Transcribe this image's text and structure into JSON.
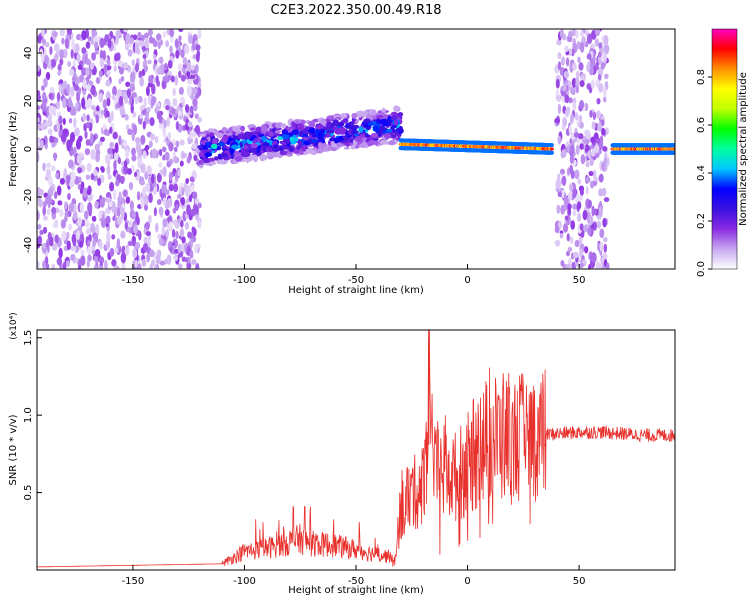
{
  "figure": {
    "title": "C2E3.2022.350.00.49.R18"
  },
  "chart_data": [
    {
      "type": "heatmap",
      "xlabel": "Height of straight line (km)",
      "ylabel": "Frequency (Hz)",
      "xlim": [
        -193,
        93
      ],
      "ylim": [
        -50,
        50
      ],
      "xticks": [
        -150,
        -100,
        -50,
        0,
        50
      ],
      "yticks": [
        -40,
        -20,
        0,
        20,
        40
      ],
      "colorbar": {
        "label": "Normalized spectral amplitude",
        "range": [
          0,
          1
        ],
        "ticks": [
          0.0,
          0.2,
          0.4,
          0.6,
          0.8
        ],
        "stops": [
          "#ffffff",
          "#c8a8f0",
          "#8a2be2",
          "#3a10e0",
          "#0000ff",
          "#00c8ff",
          "#00ffa0",
          "#00ff00",
          "#c0ff00",
          "#ffff00",
          "#ff9000",
          "#ff0000",
          "#ff00c0"
        ]
      },
      "description_regions": [
        {
          "x": [
            -193,
            -120
          ],
          "freq": [
            -50,
            50
          ],
          "amplitude": 0.1,
          "pattern": "broadband noise"
        },
        {
          "x": [
            -120,
            -30
          ],
          "freq_center": [
            0,
            10
          ],
          "amplitude": 0.35,
          "pattern": "signal band"
        },
        {
          "x": [
            -30,
            38
          ],
          "freq_center": [
            2,
            0
          ],
          "amplitude": 0.85,
          "pattern": "narrow strong tone"
        },
        {
          "x": [
            40,
            63
          ],
          "freq": [
            -50,
            50
          ],
          "amplitude": 0.1,
          "pattern": "broadband noise"
        },
        {
          "x": [
            65,
            93
          ],
          "freq_center": [
            0,
            0
          ],
          "amplitude": 0.85,
          "pattern": "narrow strong tone"
        }
      ],
      "grid": false
    },
    {
      "type": "line",
      "xlabel": "Height of straight line (km)",
      "ylabel": "SNR (10 * v/v)",
      "y_multiplier": "(x10⁴)",
      "xlim": [
        -193,
        93
      ],
      "ylim": [
        0,
        1.55
      ],
      "xticks": [
        -150,
        -100,
        -50,
        0,
        50
      ],
      "yticks": [
        0.5,
        1.0,
        1.5
      ],
      "color": "#e8302c",
      "envelope": {
        "x": [
          -193,
          -110,
          -100,
          -90,
          -75,
          -70,
          -60,
          -50,
          -40,
          -32,
          -30,
          -25,
          -20,
          -17,
          -15,
          -10,
          -5,
          0,
          5,
          10,
          20,
          30,
          40,
          50,
          60,
          70,
          80,
          93
        ],
        "y": [
          0.02,
          0.04,
          0.12,
          0.14,
          0.2,
          0.17,
          0.16,
          0.13,
          0.1,
          0.08,
          0.38,
          0.48,
          0.55,
          1.05,
          0.62,
          0.63,
          0.6,
          0.68,
          0.78,
          0.86,
          0.84,
          0.87,
          0.88,
          0.89,
          0.89,
          0.88,
          0.87,
          0.87
        ]
      },
      "spikes": [
        {
          "x": -17.5,
          "y": 1.55
        },
        {
          "x": -73,
          "y": 0.41
        },
        {
          "x": -27,
          "y": 0.66
        },
        {
          "x": -10,
          "y": 1.0
        },
        {
          "x": 5,
          "y": 0.97
        }
      ],
      "grid": false
    }
  ]
}
